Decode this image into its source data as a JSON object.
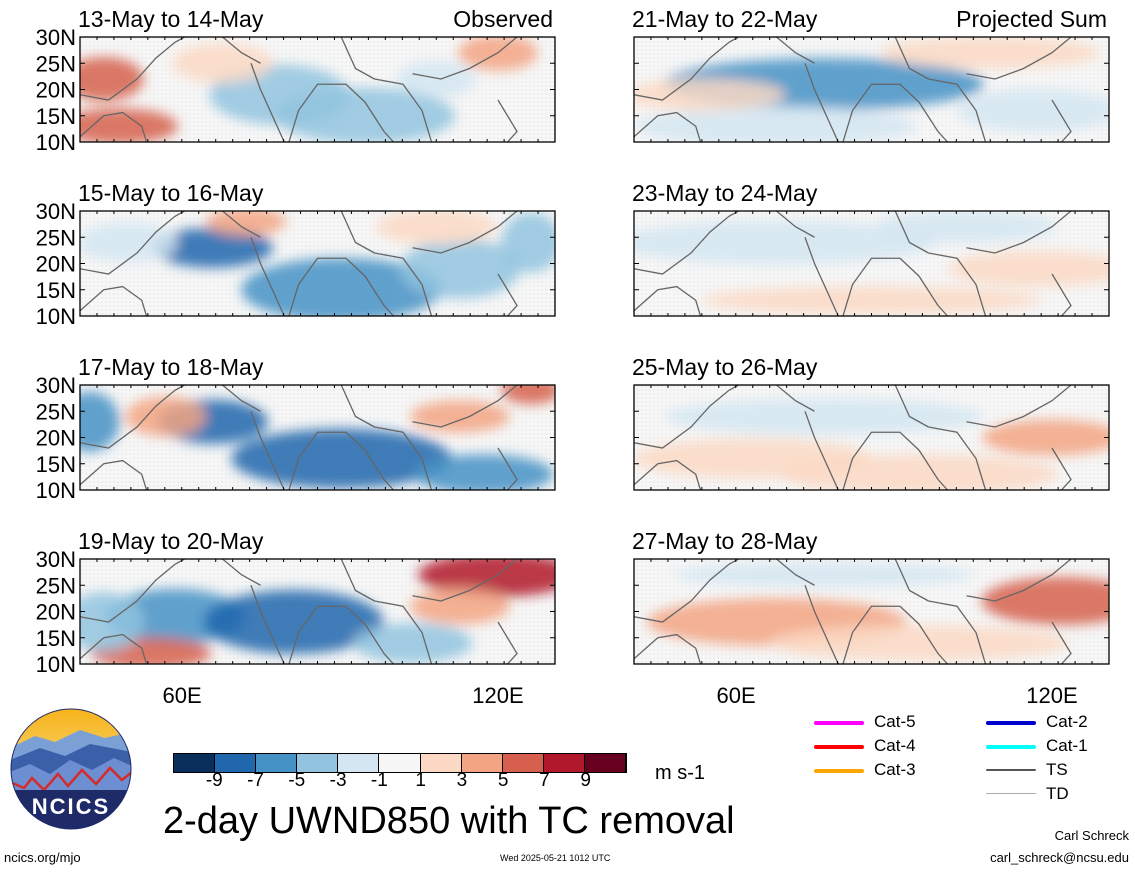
{
  "chart_data": {
    "type": "heatmap",
    "title": "2-day UWND850 with TC removal",
    "unit": "m s-1",
    "y_ticks": [
      "30N",
      "25N",
      "20N",
      "15N",
      "10N"
    ],
    "x_ticks": [
      "60E",
      "120E"
    ],
    "column_labels": {
      "left": "Observed",
      "right": "Projected Sum"
    },
    "panels": [
      {
        "period": "13-May to 14-May",
        "column": "left"
      },
      {
        "period": "15-May to 16-May",
        "column": "left"
      },
      {
        "period": "17-May to 18-May",
        "column": "left"
      },
      {
        "period": "19-May to 20-May",
        "column": "left"
      },
      {
        "period": "21-May to 22-May",
        "column": "right"
      },
      {
        "period": "23-May to 24-May",
        "column": "right"
      },
      {
        "period": "25-May to 26-May",
        "column": "right"
      },
      {
        "period": "27-May to 28-May",
        "column": "right"
      }
    ],
    "colorbar": {
      "labels": [
        "-9",
        "-7",
        "-5",
        "-3",
        "-1",
        "1",
        "3",
        "5",
        "7",
        "9"
      ],
      "colors": [
        "#0b2f5c",
        "#1f66ad",
        "#4592c6",
        "#92c4df",
        "#d3e6f1",
        "#f7f7f7",
        "#fcd9c4",
        "#f3a482",
        "#d6604d",
        "#b2182b",
        "#67001f"
      ]
    }
  },
  "logo": {
    "text": "NCICS"
  },
  "footer": {
    "url": "ncics.org/mjo",
    "timestamp": "Wed 2025-05-21 1012 UTC",
    "author": "Carl Schreck",
    "email": "carl_schreck@ncsu.edu"
  },
  "track_legend": [
    {
      "label": "Cat-5",
      "color": "#ff00ff"
    },
    {
      "label": "Cat-4",
      "color": "#ff0000"
    },
    {
      "label": "Cat-3",
      "color": "#ffa500"
    },
    {
      "label": "Cat-2",
      "color": "#0000cc"
    },
    {
      "label": "Cat-1",
      "color": "#00ffff"
    },
    {
      "label": "TS",
      "color": "#555555"
    },
    {
      "label": "TD",
      "color": "#aaaaaa"
    }
  ]
}
